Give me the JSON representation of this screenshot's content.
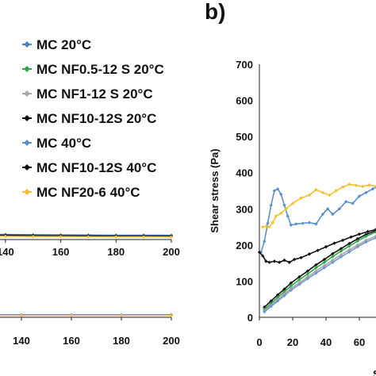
{
  "panel_label": "b)",
  "legend": [
    {
      "label": "MC 20°C",
      "color": "#4f7fc0"
    },
    {
      "label": "MC NF0.5-12 S 20°C",
      "color": "#2fa84a"
    },
    {
      "label": "MC NF1-12 S 20°C",
      "color": "#a7a7a7"
    },
    {
      "label": "MC NF10-12S 20°C",
      "color": "#111111"
    },
    {
      "label": "MC 40°C",
      "color": "#5b8fcc"
    },
    {
      "label": "MC NF10-12S 40°C",
      "color": "#111111"
    },
    {
      "label": "MC NF20-6 40°C",
      "color": "#f2c12e"
    }
  ],
  "chart_data": [
    {
      "type": "line",
      "xlim": [
        120,
        200
      ],
      "x_ticks": [
        "140",
        "160",
        "180",
        "200"
      ],
      "series": [
        {
          "name": "MC 20°C",
          "color": "#4f7fc0",
          "x": [
            120,
            140,
            160,
            180,
            200
          ],
          "y": [
            0.8,
            0.8,
            0.8,
            0.8,
            0.8
          ]
        },
        {
          "name": "MC NF20-6 40°C",
          "color": "#f2c12e",
          "x": [
            120,
            140,
            160,
            180,
            200
          ],
          "y": [
            0.6,
            0.6,
            0.6,
            0.6,
            0.6
          ]
        }
      ]
    },
    {
      "type": "line",
      "xlim": [
        130,
        200
      ],
      "x_ticks": [
        "140",
        "160",
        "180",
        "200"
      ],
      "series": [
        {
          "name": "MC 20°C",
          "color": "#4f7fc0",
          "x": [
            130,
            140,
            150,
            160,
            170,
            180,
            190,
            200
          ],
          "y": [
            0.85,
            0.8,
            0.76,
            0.73,
            0.71,
            0.69,
            0.68,
            0.67
          ]
        },
        {
          "name": "MC NF10-12S 20°C",
          "color": "#111111",
          "x": [
            130,
            140,
            150,
            160,
            170,
            180,
            190,
            200
          ],
          "y": [
            0.7,
            0.66,
            0.62,
            0.6,
            0.58,
            0.56,
            0.55,
            0.54
          ]
        },
        {
          "name": "MC NF20-6 40°C",
          "color": "#f2c12e",
          "x": [
            130,
            140,
            150,
            160,
            170,
            180,
            190,
            200
          ],
          "y": [
            0.55,
            0.51,
            0.48,
            0.46,
            0.44,
            0.43,
            0.42,
            0.41
          ]
        }
      ]
    },
    {
      "type": "line",
      "ylabel": "Shear stress (Pa)",
      "xlabel": "S",
      "xlim": [
        0,
        70
      ],
      "ylim": [
        0,
        700
      ],
      "x_ticks": [
        "0",
        "20",
        "40",
        "60"
      ],
      "y_ticks": [
        "0",
        "100",
        "200",
        "300",
        "400",
        "500",
        "600",
        "700"
      ],
      "series": [
        {
          "name": "MC 40°C",
          "color": "#5b8fcc",
          "x": [
            1,
            3,
            5,
            7,
            9,
            11,
            13,
            15,
            17,
            19,
            22,
            26,
            30,
            34,
            38,
            41,
            44,
            48,
            52,
            56,
            60,
            64,
            68,
            70
          ],
          "y": [
            180,
            210,
            260,
            310,
            350,
            355,
            340,
            310,
            280,
            255,
            258,
            260,
            262,
            258,
            285,
            300,
            285,
            300,
            320,
            315,
            335,
            345,
            355,
            360
          ]
        },
        {
          "name": "MC NF20-6 40°C",
          "color": "#f2c12e",
          "x": [
            2,
            4,
            6,
            8,
            10,
            13,
            16,
            20,
            25,
            30,
            34,
            38,
            42,
            46,
            50,
            54,
            58,
            62,
            66,
            70
          ],
          "y": [
            250,
            252,
            250,
            262,
            280,
            288,
            300,
            315,
            330,
            338,
            353,
            345,
            338,
            350,
            360,
            368,
            365,
            362,
            366,
            362
          ]
        },
        {
          "name": "MC NF10-12S 40°C",
          "color": "#111111",
          "x": [
            0,
            2,
            4,
            6,
            9,
            12,
            15,
            18,
            21,
            25,
            30,
            35,
            40,
            45,
            50,
            55,
            60,
            65,
            70
          ],
          "y": [
            180,
            170,
            155,
            152,
            155,
            152,
            158,
            152,
            160,
            165,
            175,
            185,
            195,
            205,
            213,
            222,
            230,
            237,
            243
          ]
        },
        {
          "name": "MC NF10-12S 20°C",
          "color": "#111111",
          "x": [
            3,
            7,
            11,
            15,
            19,
            24,
            29,
            34,
            39,
            44,
            49,
            54,
            59,
            64,
            70
          ],
          "y": [
            28,
            45,
            62,
            78,
            95,
            112,
            128,
            145,
            160,
            176,
            190,
            204,
            217,
            229,
            240
          ]
        },
        {
          "name": "MC NF0.5-12 S 20°C",
          "color": "#2fa84a",
          "x": [
            3,
            7,
            11,
            15,
            19,
            24,
            29,
            34,
            39,
            44,
            49,
            54,
            59,
            64,
            70
          ],
          "y": [
            22,
            38,
            55,
            71,
            87,
            104,
            120,
            137,
            152,
            168,
            183,
            197,
            211,
            224,
            236
          ]
        },
        {
          "name": "MC NF1-12 S 20°C",
          "color": "#a7a7a7",
          "x": [
            3,
            7,
            11,
            15,
            19,
            24,
            29,
            34,
            39,
            44,
            49,
            54,
            59,
            64,
            70
          ],
          "y": [
            18,
            33,
            49,
            65,
            80,
            96,
            112,
            128,
            143,
            158,
            173,
            187,
            200,
            213,
            225
          ]
        },
        {
          "name": "MC 20°C",
          "color": "#6f97d0",
          "x": [
            3,
            7,
            11,
            15,
            19,
            24,
            29,
            34,
            39,
            44,
            49,
            54,
            59,
            64,
            70
          ],
          "y": [
            15,
            30,
            45,
            60,
            75,
            91,
            107,
            122,
            137,
            152,
            167,
            181,
            195,
            208,
            220
          ]
        }
      ]
    }
  ]
}
